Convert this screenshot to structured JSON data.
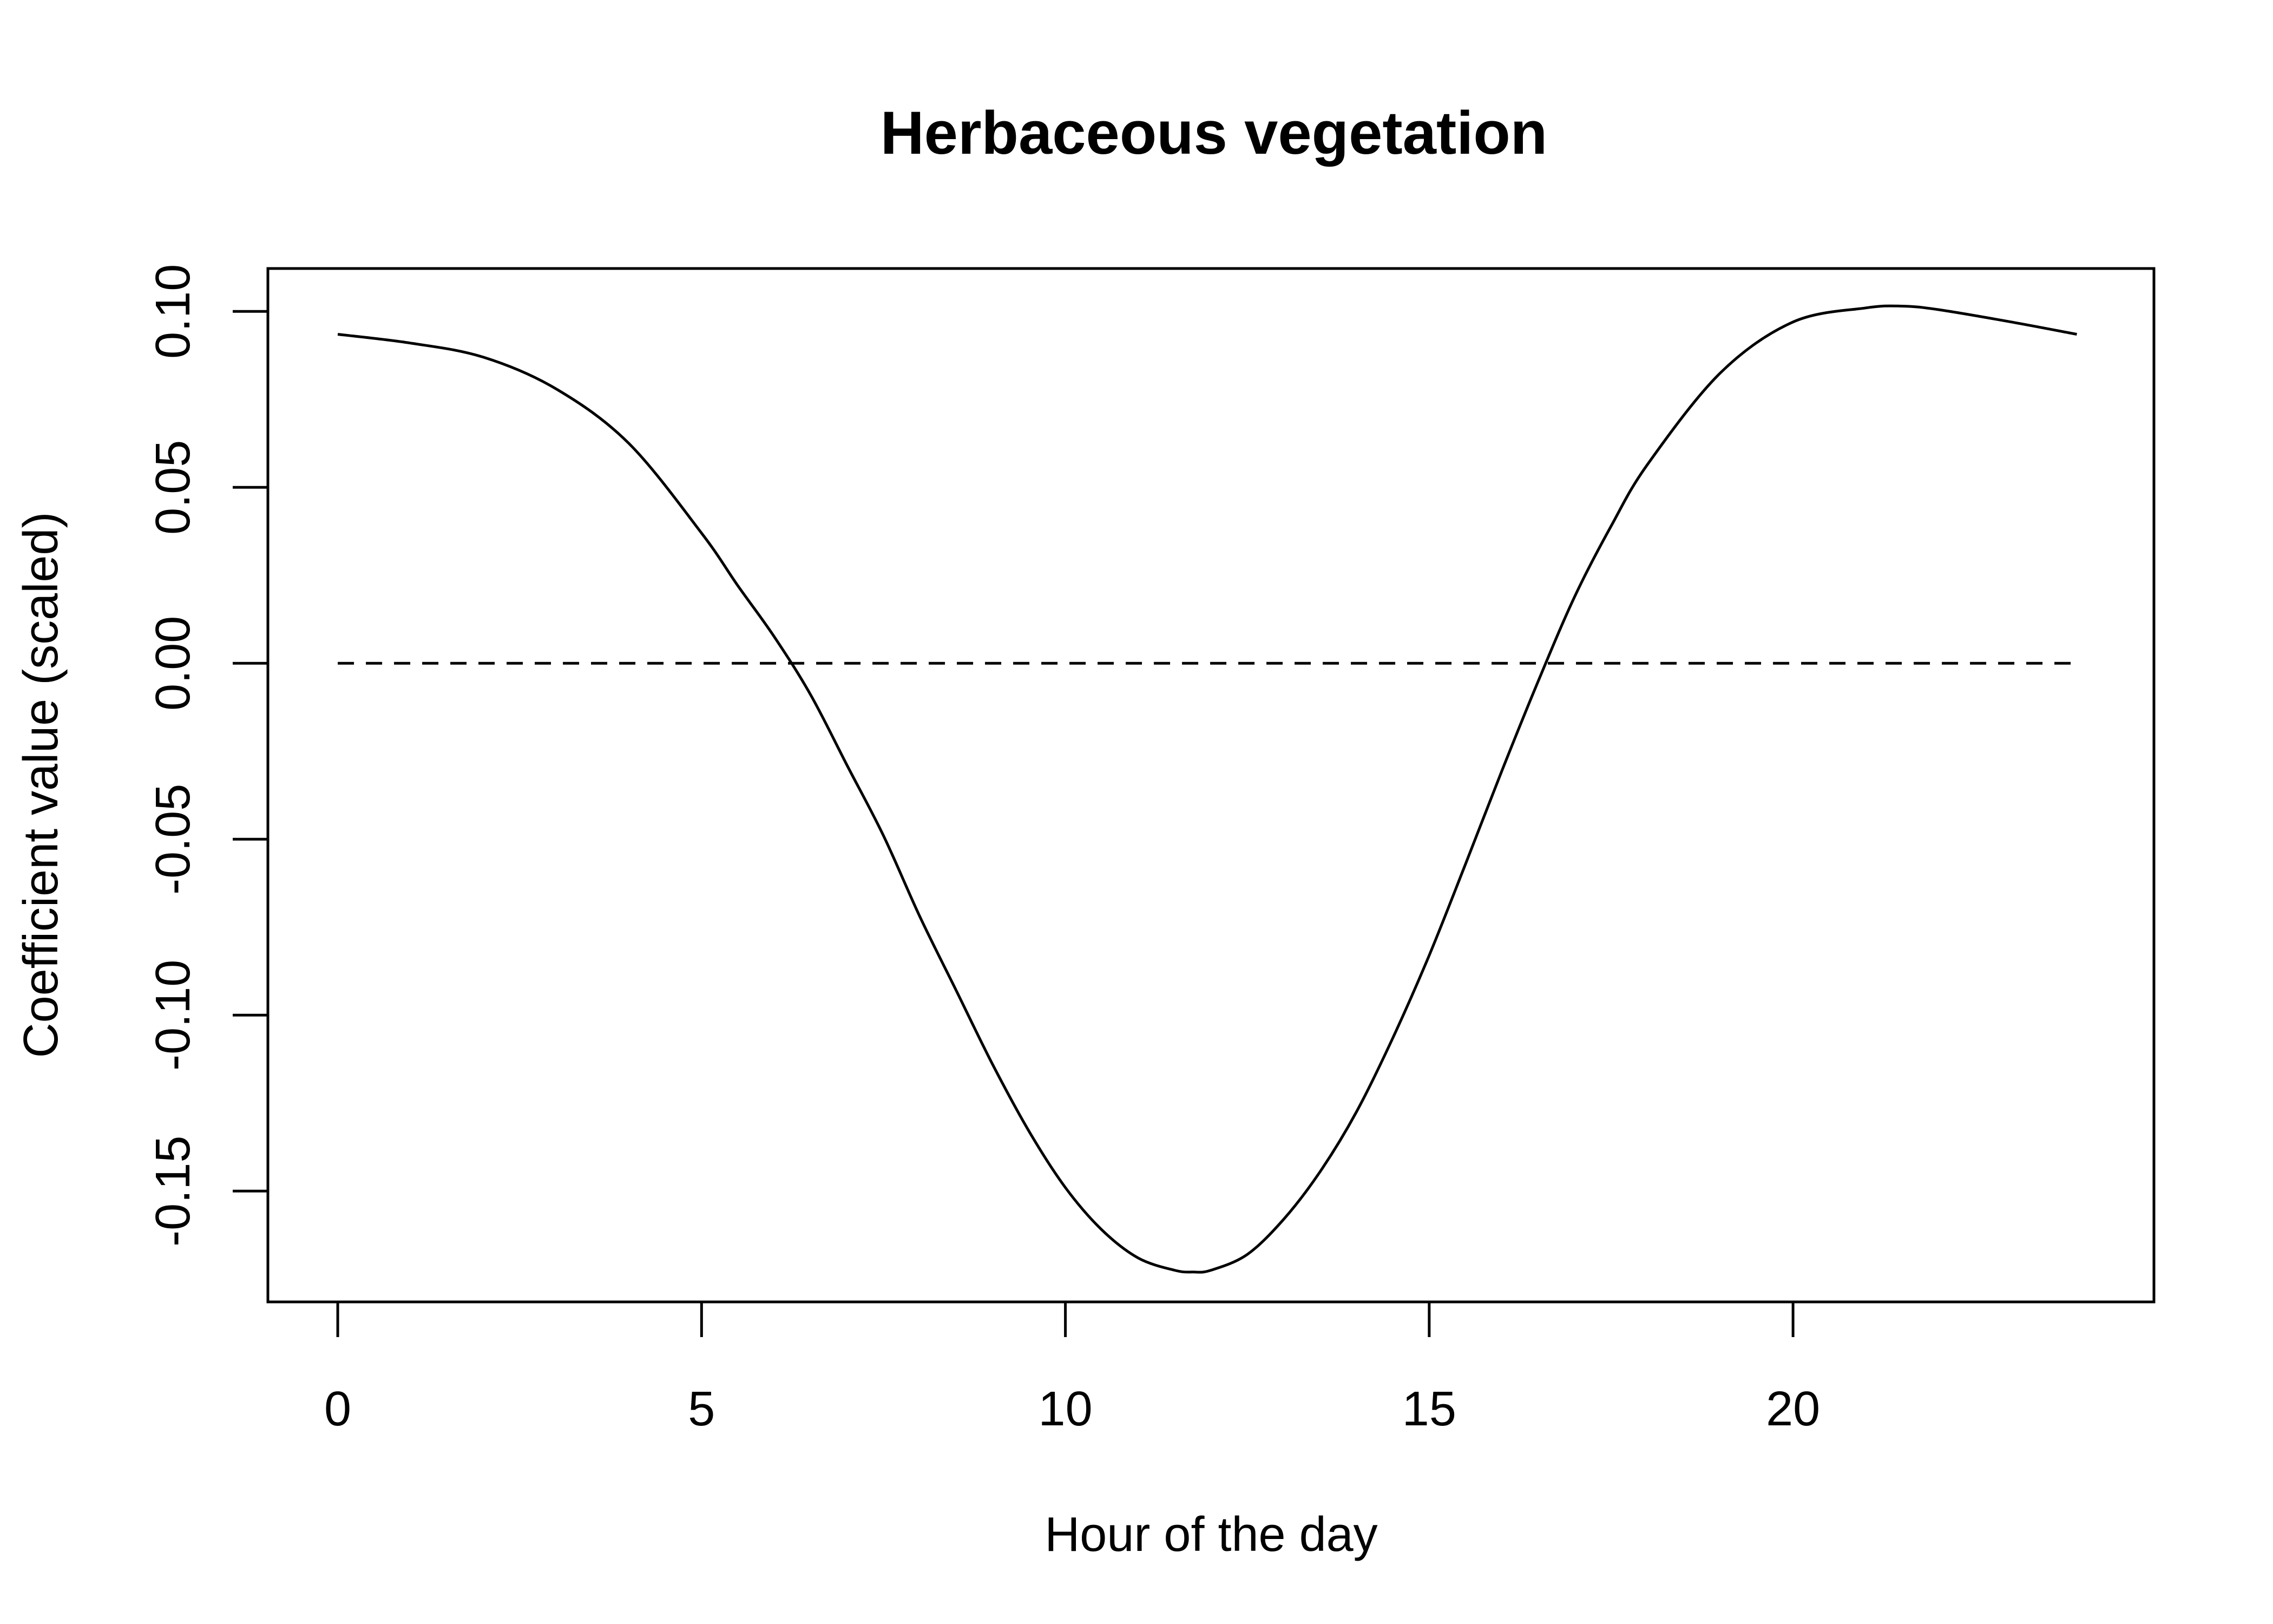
{
  "chart_data": {
    "type": "line",
    "title": "Herbaceous vegetation",
    "xlabel": "Hour of the day",
    "ylabel": "Coefficient value (scaled)",
    "xlim": [
      -0.96,
      24.96
    ],
    "ylim": [
      -0.1815,
      0.1122
    ],
    "x_ticks": [
      0,
      5,
      10,
      15,
      20
    ],
    "x_tick_labels": [
      "0",
      "5",
      "10",
      "15",
      "20"
    ],
    "y_ticks": [
      -0.15,
      -0.1,
      -0.05,
      0.0,
      0.05,
      0.1
    ],
    "y_tick_labels": [
      "-0.15",
      "-0.10",
      "-0.05",
      "0.00",
      "0.05",
      "0.10"
    ],
    "grid": false,
    "legend": "none",
    "reference_line": {
      "y": 0,
      "style": "dashed",
      "x_range": [
        0,
        23.9
      ]
    },
    "series": [
      {
        "x": [
          0,
          1,
          2,
          3,
          4,
          5,
          5.5,
          6,
          6.5,
          7,
          7.5,
          8,
          8.5,
          9,
          9.5,
          10,
          10.5,
          11,
          11.5,
          11.75,
          12,
          12.5,
          13,
          13.5,
          14,
          14.5,
          15,
          15.5,
          16,
          16.5,
          17,
          17.5,
          18,
          19,
          20,
          21,
          21.5,
          22,
          23,
          23.9
        ],
        "y": [
          0.0935,
          0.091,
          0.087,
          0.078,
          0.0625,
          0.037,
          0.022,
          0.0075,
          -0.009,
          -0.029,
          -0.049,
          -0.072,
          -0.093,
          -0.114,
          -0.133,
          -0.149,
          -0.161,
          -0.169,
          -0.1725,
          -0.173,
          -0.1725,
          -0.168,
          -0.158,
          -0.1445,
          -0.1275,
          -0.1065,
          -0.083,
          -0.057,
          -0.0305,
          -0.005,
          0.019,
          0.039,
          0.0565,
          0.0825,
          0.097,
          0.101,
          0.1015,
          0.1005,
          0.097,
          0.0935
        ]
      }
    ]
  }
}
